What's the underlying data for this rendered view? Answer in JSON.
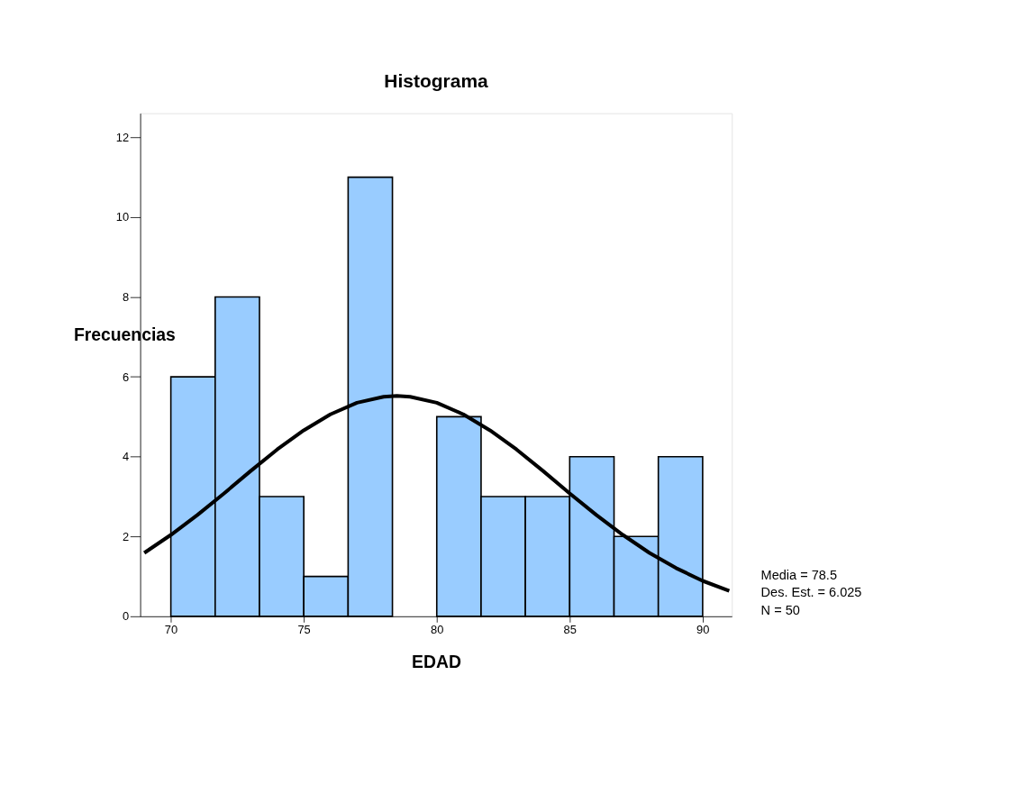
{
  "chart_data": {
    "type": "histogram",
    "title": "Histograma",
    "xlabel": "EDAD",
    "ylabel": "Frecuencias",
    "bins": [
      70,
      71.667,
      73.333,
      75,
      76.667,
      78.333,
      80,
      81.667,
      83.333,
      85,
      86.667,
      88.333,
      90
    ],
    "values": [
      6,
      8,
      3,
      1,
      11,
      0,
      5,
      3,
      3,
      4,
      2,
      4
    ],
    "color": "#99ccff",
    "series": [
      {
        "type": "line",
        "color": "#000000",
        "x": [
          69,
          70,
          71,
          72,
          73,
          74,
          75,
          76,
          77,
          78,
          78.5,
          79,
          80,
          81,
          82,
          83,
          84,
          85,
          86,
          87,
          88,
          89,
          90,
          91
        ],
        "values": [
          1.59,
          2.04,
          2.54,
          3.08,
          3.64,
          4.18,
          4.66,
          5.06,
          5.35,
          5.5,
          5.52,
          5.5,
          5.35,
          5.06,
          4.66,
          4.18,
          3.64,
          3.08,
          2.54,
          2.04,
          1.59,
          1.21,
          0.89,
          0.64
        ]
      }
    ],
    "xlim": [
      68.85,
      91.1
    ],
    "xticks": [
      70,
      75,
      80,
      85,
      90
    ],
    "ylim": [
      0,
      12.6
    ],
    "yticks": [
      0,
      2,
      4,
      6,
      8,
      10,
      12
    ],
    "grid": false,
    "annotations": [
      "Media = 78.5",
      "Des. Est. = 6.025",
      "N = 50"
    ]
  }
}
